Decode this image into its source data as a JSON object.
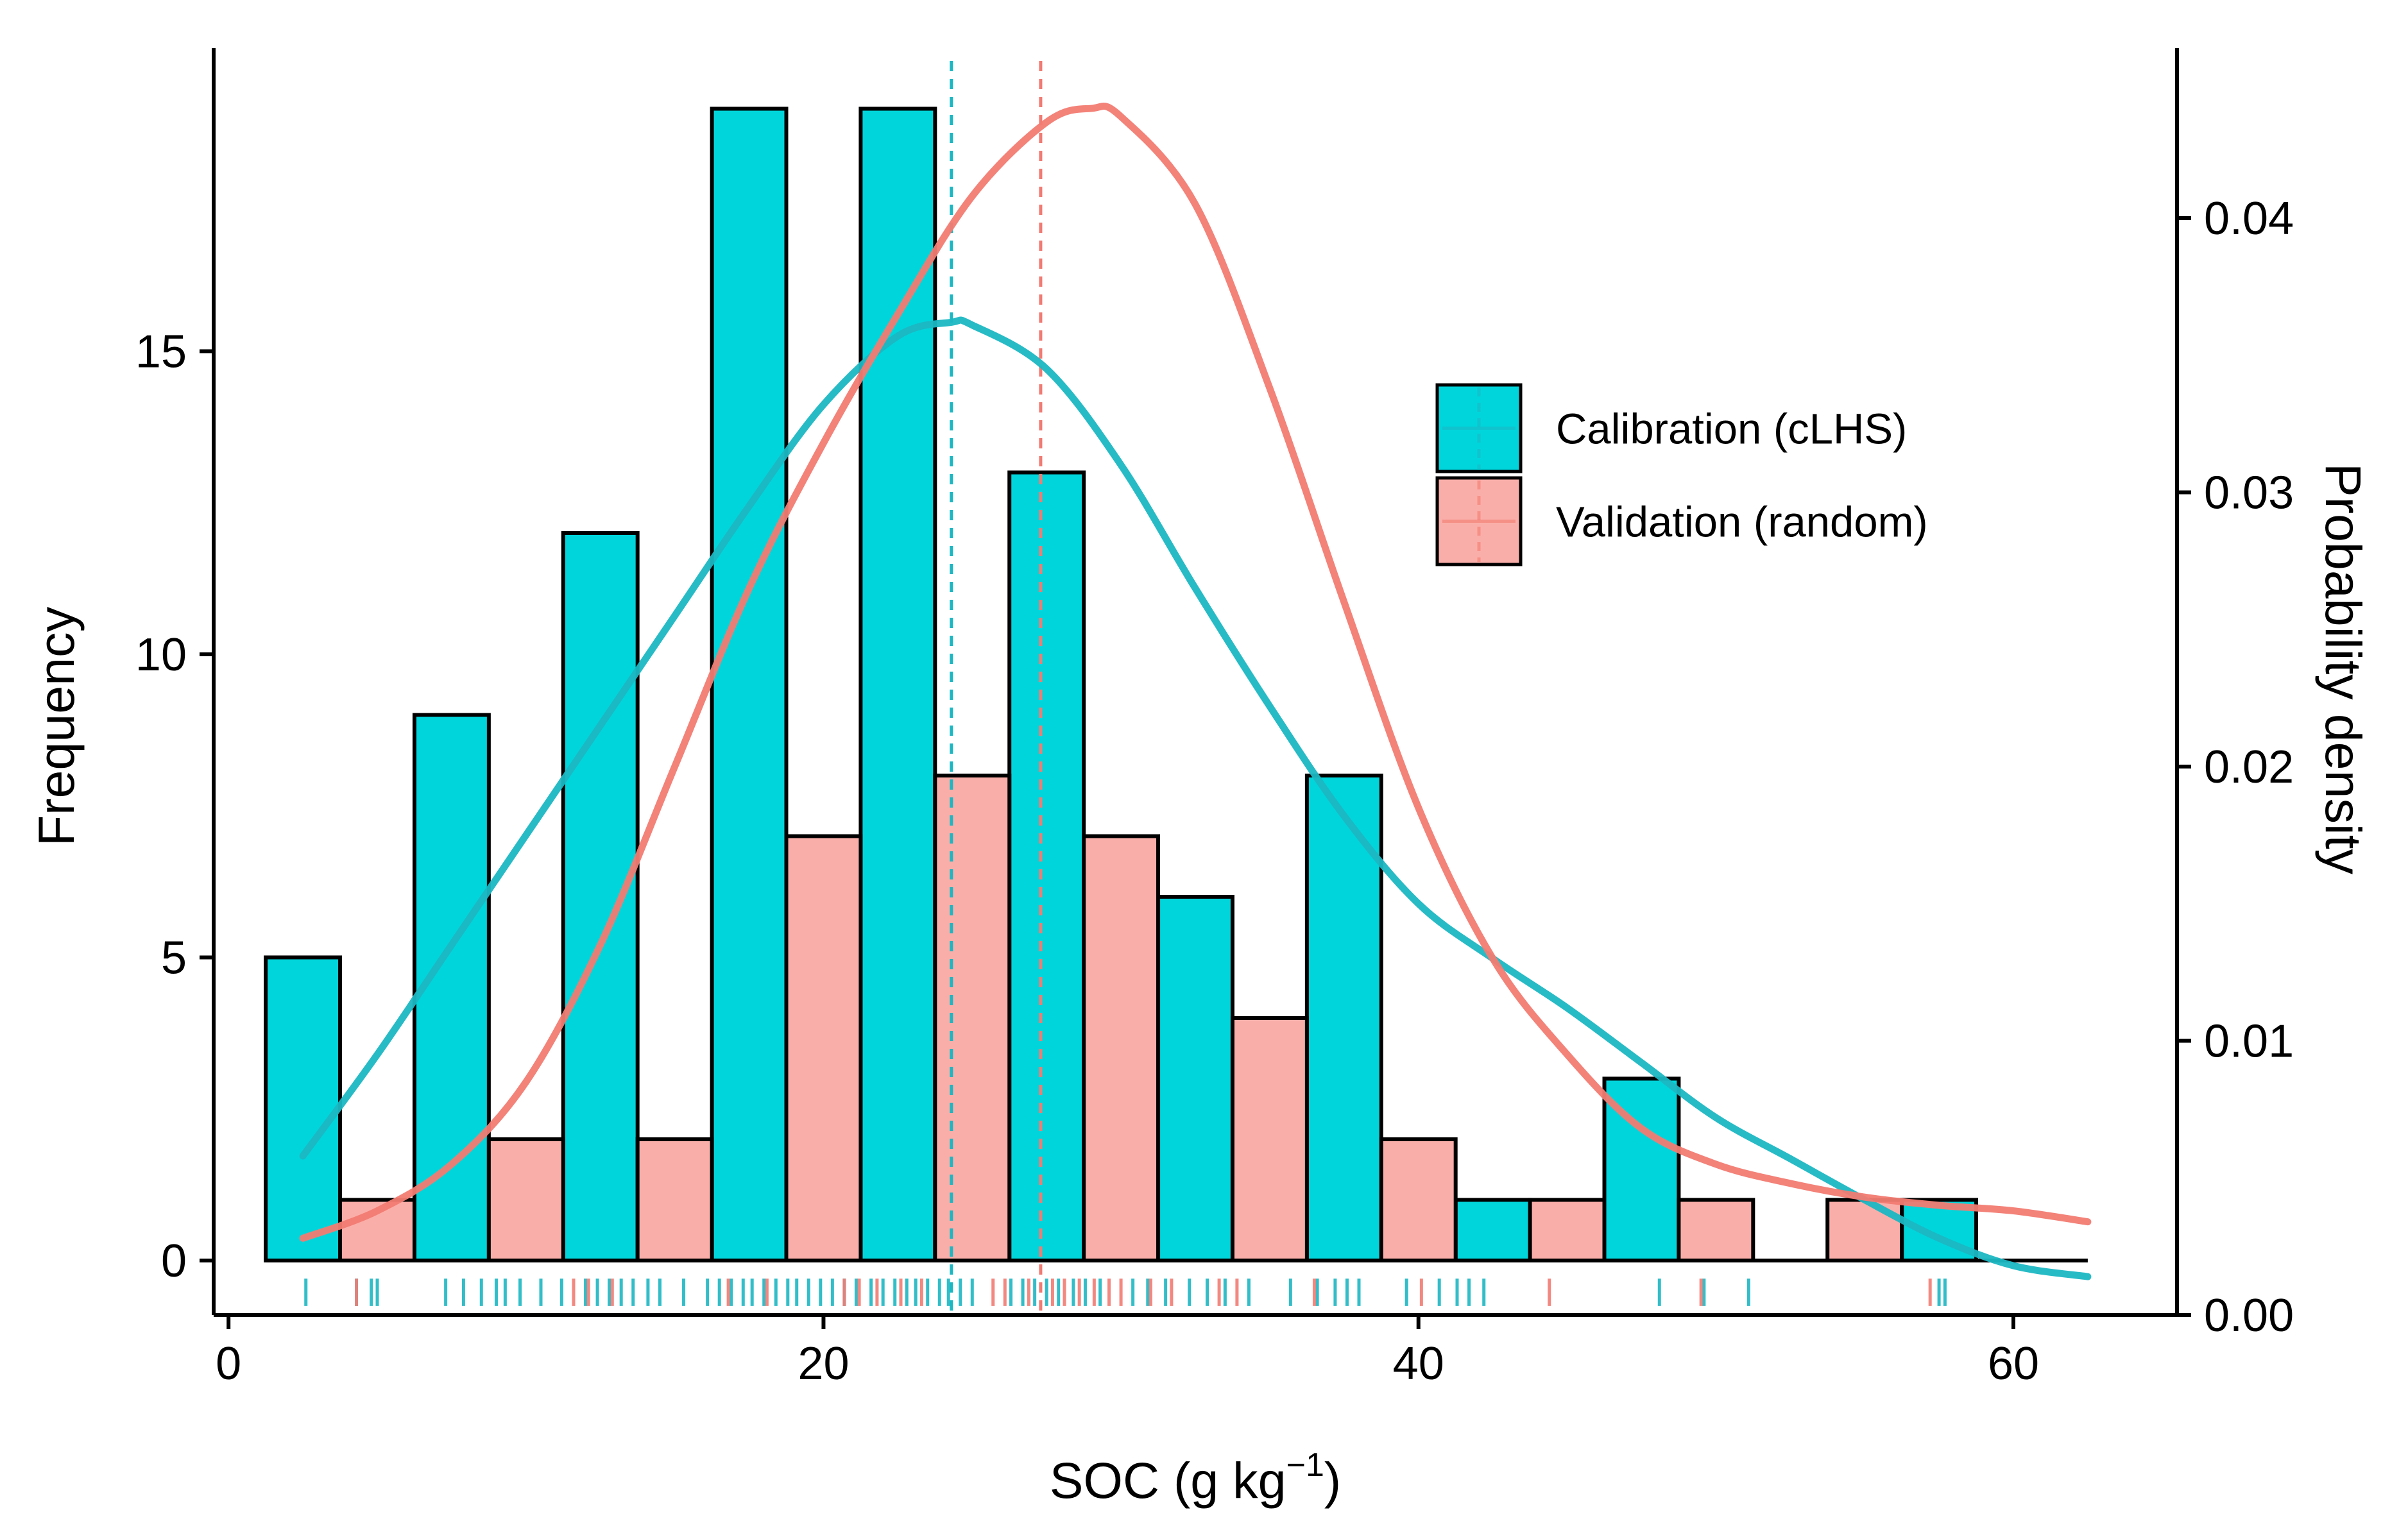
{
  "chart_data": {
    "type": "bar",
    "title": "",
    "xlabel": "SOC (g kg",
    "xlabel_sup": "−1",
    "xlabel_close": ")",
    "ylabel": "Frequency",
    "y2label": "Probability density",
    "xlim": [
      -0.5,
      65.5
    ],
    "ylim": [
      -0.9,
      20
    ],
    "y2lim": [
      0,
      0.0462
    ],
    "x_ticks": [
      0,
      20,
      40,
      60
    ],
    "y_ticks": [
      0,
      5,
      10,
      15
    ],
    "y2_ticks": [
      0.0,
      0.01,
      0.02,
      0.03,
      0.04
    ],
    "y2_tick_labels": [
      "0.00",
      "0.01",
      "0.02",
      "0.03",
      "0.04"
    ],
    "bin_width": 2.5,
    "series": [
      {
        "name": "Calibration (cLHS)",
        "color": "#00D5DB",
        "line_color": "#1BB7C3",
        "bars": [
          {
            "x": 2.5,
            "count": 5
          },
          {
            "x": 7.5,
            "count": 9
          },
          {
            "x": 12.5,
            "count": 12
          },
          {
            "x": 17.5,
            "count": 19
          },
          {
            "x": 22.5,
            "count": 19
          },
          {
            "x": 27.5,
            "count": 13
          },
          {
            "x": 32.5,
            "count": 6
          },
          {
            "x": 37.5,
            "count": 8
          },
          {
            "x": 42.5,
            "count": 1
          },
          {
            "x": 47.5,
            "count": 3
          },
          {
            "x": 57.5,
            "count": 1
          }
        ],
        "mean": 24.3,
        "density": {
          "x": [
            2.5,
            5,
            7.5,
            10,
            12.5,
            15,
            17.5,
            20,
            22.5,
            24.3,
            25,
            27.5,
            30,
            32.5,
            35,
            37.5,
            40,
            42.5,
            45,
            47.5,
            50,
            52.5,
            55,
            57.5,
            60,
            62.5
          ],
          "y": [
            0.0058,
            0.0095,
            0.0135,
            0.0175,
            0.0215,
            0.0255,
            0.0295,
            0.0332,
            0.0357,
            0.0362,
            0.0361,
            0.0345,
            0.031,
            0.0265,
            0.0222,
            0.0182,
            0.015,
            0.013,
            0.0112,
            0.0092,
            0.0072,
            0.0057,
            0.0042,
            0.0028,
            0.0018,
            0.0014
          ]
        },
        "rug": [
          2.6,
          4.3,
          4.8,
          5.0,
          7.3,
          7.9,
          8.5,
          9.0,
          9.3,
          9.8,
          10.5,
          11.2,
          12.0,
          12.4,
          12.8,
          13.2,
          13.6,
          14.1,
          14.5,
          15.3,
          16.1,
          16.5,
          16.9,
          17.3,
          17.6,
          18.0,
          18.4,
          18.8,
          19.1,
          19.5,
          19.9,
          20.3,
          20.7,
          21.1,
          21.6,
          22.0,
          22.4,
          22.8,
          23.1,
          23.5,
          23.9,
          24.2,
          24.6,
          25.0,
          26.3,
          26.7,
          27.1,
          27.5,
          27.9,
          28.4,
          28.8,
          29.3,
          30.4,
          30.9,
          31.5,
          32.3,
          32.9,
          33.5,
          34.3,
          35.7,
          36.6,
          37.2,
          37.6,
          38.0,
          39.6,
          40.7,
          41.3,
          41.7,
          42.2,
          48.1,
          49.6,
          51.1,
          57.5,
          57.7
        ]
      },
      {
        "name": "Validation (random)",
        "color": "#FAAEA9",
        "line_color": "#F27B72",
        "bars": [
          {
            "x": 5.0,
            "count": 1
          },
          {
            "x": 10.0,
            "count": 2
          },
          {
            "x": 15.0,
            "count": 2
          },
          {
            "x": 20.0,
            "count": 7
          },
          {
            "x": 25.0,
            "count": 8
          },
          {
            "x": 30.0,
            "count": 7
          },
          {
            "x": 35.0,
            "count": 4
          },
          {
            "x": 40.0,
            "count": 2
          },
          {
            "x": 45.0,
            "count": 1
          },
          {
            "x": 50.0,
            "count": 1
          },
          {
            "x": 55.0,
            "count": 1
          }
        ],
        "mean": 27.3,
        "density": {
          "x": [
            2.5,
            5,
            7.5,
            10,
            12.5,
            15,
            17.5,
            20,
            22.5,
            25,
            27.5,
            29,
            30,
            32.5,
            35,
            37.5,
            40,
            42.5,
            45,
            47.5,
            50,
            52.5,
            55,
            57.5,
            60,
            62.5
          ],
          "y": [
            0.0028,
            0.0038,
            0.0055,
            0.0085,
            0.0135,
            0.02,
            0.0265,
            0.0318,
            0.0365,
            0.0408,
            0.0435,
            0.044,
            0.0437,
            0.0405,
            0.0338,
            0.026,
            0.0185,
            0.013,
            0.0095,
            0.0068,
            0.0055,
            0.0048,
            0.0043,
            0.004,
            0.0038,
            0.0034
          ]
        },
        "rug": [
          4.3,
          11.6,
          12.1,
          12.9,
          16.8,
          18.1,
          20.7,
          21.2,
          21.8,
          22.6,
          23.3,
          25.7,
          26.1,
          26.9,
          27.7,
          28.1,
          28.6,
          29.1,
          29.6,
          30.0,
          31.0,
          31.7,
          33.3,
          33.9,
          36.5,
          40.1,
          44.4,
          49.5,
          57.2
        ]
      }
    ],
    "legend": {
      "position": "top-right",
      "entries": [
        "Calibration (cLHS)",
        "Validation (random)"
      ]
    }
  }
}
